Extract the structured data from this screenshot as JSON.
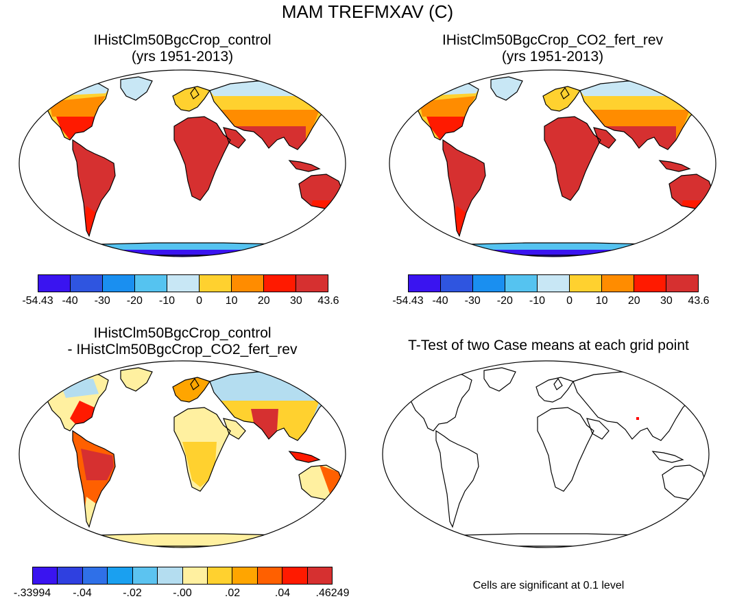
{
  "title": "MAM TREFMXAV (C)",
  "panels": [
    {
      "title1": "IHistClm50BgcCrop_control",
      "title2": "(yrs 1951-2013)"
    },
    {
      "title1": "IHistClm50BgcCrop_CO2_fert_rev",
      "title2": "(yrs 1951-2013)"
    },
    {
      "title1": "IHistClm50BgcCrop_control",
      "title2": "- IHistClm50BgcCrop_CO2_fert_rev"
    },
    {
      "title1": "T-Test of two Case means at each grid point"
    }
  ],
  "colorbar_abs": {
    "colors": [
      "#3a14f0",
      "#2f55e0",
      "#1a8ff0",
      "#55c3f0",
      "#c8e7f5",
      "#ffd12f",
      "#ff8c00",
      "#ff1a00",
      "#d63030"
    ],
    "labels": [
      "-54.43",
      "-40",
      "-30",
      "-20",
      "-10",
      "0",
      "10",
      "20",
      "30",
      "43.6"
    ]
  },
  "colorbar_diff": {
    "colors": [
      "#3a14f0",
      "#2f40e0",
      "#2f70e8",
      "#1aa0f0",
      "#5cc3f0",
      "#b4ddf0",
      "#fff0a0",
      "#ffd12f",
      "#ffa500",
      "#ff6000",
      "#ff1a00",
      "#d63030"
    ],
    "labels": [
      "-.33994",
      "-.04",
      "-.02",
      "-.00",
      ".02",
      ".04",
      ".46249"
    ]
  },
  "ttest_note": "Cells are significant at 0.1 level"
}
